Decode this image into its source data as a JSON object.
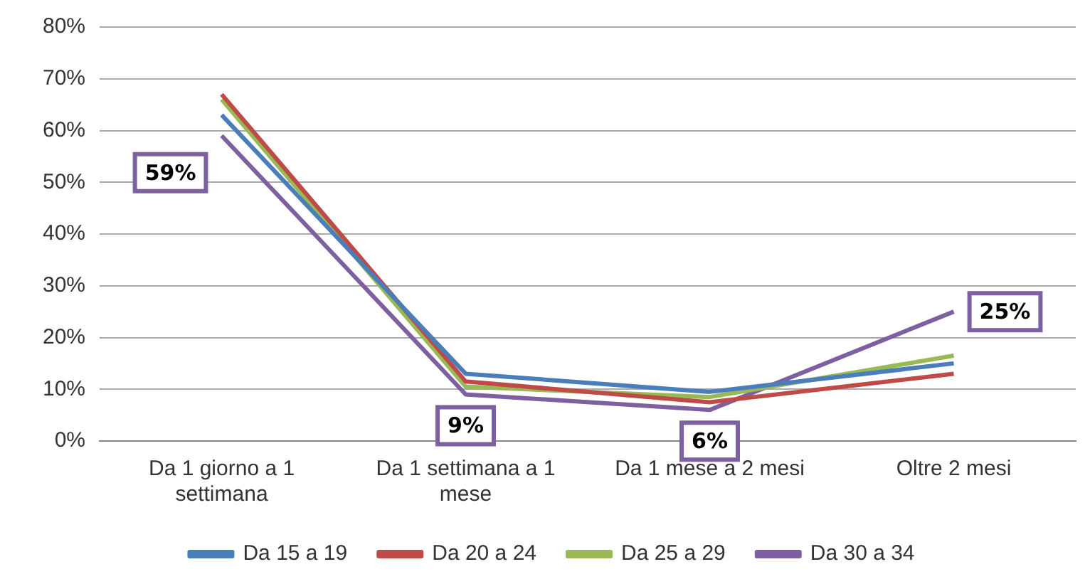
{
  "chart_data": {
    "type": "line",
    "categories": [
      "Da 1 giorno a 1 settimana",
      "Da 1 settimana a 1 mese",
      "Da 1 mese a 2 mesi",
      "Oltre 2 mesi"
    ],
    "series": [
      {
        "name": "Da 15 a 19",
        "color": "#4a7ebb",
        "values": [
          63,
          13,
          9.5,
          15
        ]
      },
      {
        "name": "Da 20 a 24",
        "color": "#be4b48",
        "values": [
          67,
          11.5,
          7.5,
          13
        ]
      },
      {
        "name": "Da 25 a 29",
        "color": "#98b954",
        "values": [
          66,
          10.5,
          8.5,
          16.5
        ]
      },
      {
        "name": "Da 30 a 34",
        "color": "#7d60a0",
        "values": [
          59,
          9,
          6,
          25
        ],
        "value_labels": [
          "59%",
          "9%",
          "6%",
          "25%"
        ]
      }
    ],
    "ylim": [
      0,
      80
    ],
    "yticks": [
      {
        "value": 0,
        "label": "0%"
      },
      {
        "value": 10,
        "label": "10%"
      },
      {
        "value": 20,
        "label": "20%"
      },
      {
        "value": 30,
        "label": "30%"
      },
      {
        "value": 40,
        "label": "40%"
      },
      {
        "value": 50,
        "label": "50%"
      },
      {
        "value": 60,
        "label": "60%"
      },
      {
        "value": 70,
        "label": "70%"
      },
      {
        "value": 80,
        "label": "80%"
      }
    ],
    "grid": "y",
    "legend": "bottom",
    "marker": "none",
    "line_style": "solid"
  }
}
